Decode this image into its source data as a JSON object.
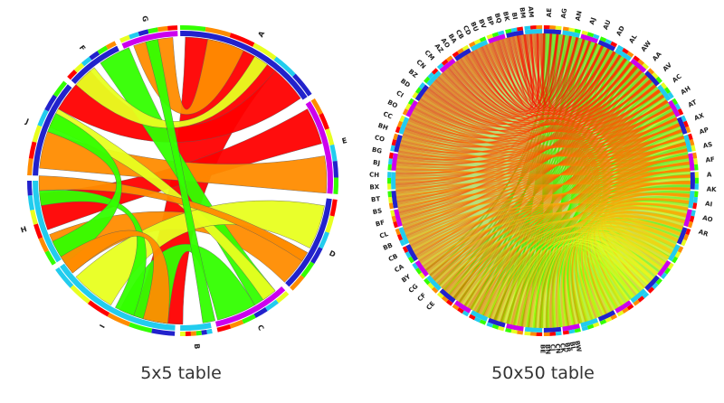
{
  "panels": [
    {
      "caption": "5x5 table",
      "labels": [
        "A",
        "E",
        "D",
        "C",
        "B",
        "I",
        "H",
        "J",
        "F",
        "G"
      ]
    },
    {
      "caption": "50x50 table",
      "labels_top_right": [
        "AE",
        "AG",
        "AN",
        "AJ",
        "AU",
        "AD",
        "AL",
        "AW",
        "AA",
        "AV",
        "AC",
        "AH",
        "AT",
        "AX",
        "AP",
        "AS",
        "AF",
        "A",
        "AK",
        "AI",
        "AO",
        "AR"
      ],
      "labels_left": [
        "CE",
        "CF",
        "CG",
        "BY",
        "CA",
        "CB",
        "BB",
        "CL",
        "BF",
        "BS",
        "BT",
        "BX",
        "CH",
        "BJ",
        "BG",
        "CO",
        "BH",
        "CC",
        "BO",
        "CI",
        "BD",
        "BZ",
        "CN",
        "CM"
      ],
      "labels_bottom": [
        "BW",
        "BL",
        "BR",
        "CK",
        "CN",
        "CJ",
        "BN",
        "BE"
      ],
      "labels_top_left": [
        "AZ",
        "AO",
        "BA",
        "CB",
        "CD",
        "BU",
        "BV",
        "BP",
        "BQ",
        "BK",
        "BI",
        "BM",
        "AM"
      ]
    }
  ],
  "colors": {
    "red": "#ff0000",
    "orange": "#ff8c00",
    "yellow": "#e8ff20",
    "green": "#33ff00",
    "cyan": "#22ccee",
    "blue": "#2222cc",
    "magenta": "#cc00ee"
  }
}
